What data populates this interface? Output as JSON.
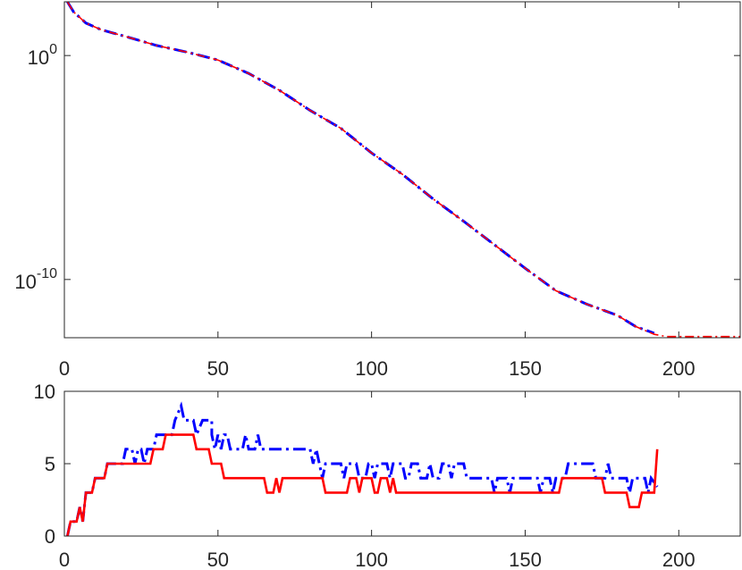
{
  "chart_data": [
    {
      "type": "line",
      "title": "",
      "xlabel": "",
      "ylabel": "",
      "yscale": "log",
      "xlim": [
        0,
        220
      ],
      "ylim_log10": [
        -12.6,
        2.4
      ],
      "xticks": [
        0,
        50,
        100,
        150,
        200
      ],
      "xtick_labels": [
        "0",
        "50",
        "100",
        "150",
        "200"
      ],
      "yticks_log10": [
        0,
        -10
      ],
      "ytick_labels": [
        {
          "base": "10",
          "exp": "0"
        },
        {
          "base": "10",
          "exp": "-10"
        }
      ],
      "grid": false,
      "series": [
        {
          "color": "#0000ff",
          "style": "dash-dot",
          "points_log10": [
            [
              1,
              2.4
            ],
            [
              3,
              1.95
            ],
            [
              7,
              1.45
            ],
            [
              12,
              1.15
            ],
            [
              20,
              0.85
            ],
            [
              30,
              0.45
            ],
            [
              40,
              0.15
            ],
            [
              50,
              -0.2
            ],
            [
              60,
              -0.8
            ],
            [
              70,
              -1.55
            ],
            [
              80,
              -2.45
            ],
            [
              90,
              -3.25
            ],
            [
              100,
              -4.35
            ],
            [
              110,
              -5.3
            ],
            [
              120,
              -6.4
            ],
            [
              130,
              -7.4
            ],
            [
              140,
              -8.45
            ],
            [
              150,
              -9.5
            ],
            [
              160,
              -10.5
            ],
            [
              170,
              -11.1
            ],
            [
              180,
              -11.6
            ],
            [
              186,
              -12.1
            ],
            [
              192,
              -12.4
            ]
          ]
        },
        {
          "color": "#ff0000",
          "style": "solid",
          "points_log10": [
            [
              1,
              2.4
            ],
            [
              3,
              1.95
            ],
            [
              7,
              1.45
            ],
            [
              12,
              1.15
            ],
            [
              20,
              0.85
            ],
            [
              30,
              0.45
            ],
            [
              40,
              0.15
            ],
            [
              50,
              -0.2
            ],
            [
              60,
              -0.8
            ],
            [
              70,
              -1.55
            ],
            [
              80,
              -2.45
            ],
            [
              90,
              -3.25
            ],
            [
              100,
              -4.35
            ],
            [
              110,
              -5.3
            ],
            [
              120,
              -6.4
            ],
            [
              130,
              -7.4
            ],
            [
              140,
              -8.45
            ],
            [
              150,
              -9.5
            ],
            [
              160,
              -10.5
            ],
            [
              170,
              -11.1
            ],
            [
              180,
              -11.6
            ],
            [
              186,
              -12.1
            ],
            [
              192,
              -12.45
            ],
            [
              196,
              -12.55
            ],
            [
              220,
              -12.55
            ]
          ]
        }
      ]
    },
    {
      "type": "line",
      "title": "",
      "xlabel": "",
      "ylabel": "",
      "xlim": [
        0,
        220
      ],
      "ylim": [
        0,
        10
      ],
      "xticks": [
        0,
        50,
        100,
        150,
        200
      ],
      "xtick_labels": [
        "0",
        "50",
        "100",
        "150",
        "200"
      ],
      "yticks": [
        0,
        5,
        10
      ],
      "ytick_labels": [
        "0",
        "5",
        "10"
      ],
      "grid": false,
      "series": [
        {
          "color": "#0000ff",
          "style": "dash-dot",
          "points": [
            [
              1,
              0
            ],
            [
              2,
              1
            ],
            [
              4,
              1
            ],
            [
              5,
              2
            ],
            [
              6,
              1
            ],
            [
              7,
              3
            ],
            [
              9,
              3
            ],
            [
              10,
              4
            ],
            [
              13,
              4
            ],
            [
              14,
              5
            ],
            [
              19,
              5
            ],
            [
              20,
              6
            ],
            [
              22,
              6
            ],
            [
              23,
              5
            ],
            [
              24,
              6
            ],
            [
              25,
              6
            ],
            [
              26,
              5
            ],
            [
              27,
              6
            ],
            [
              29,
              6
            ],
            [
              30,
              7
            ],
            [
              35,
              7
            ],
            [
              36,
              8
            ],
            [
              38,
              9
            ],
            [
              39,
              8
            ],
            [
              42,
              8
            ],
            [
              43,
              7
            ],
            [
              45,
              8
            ],
            [
              48,
              8
            ],
            [
              48,
              7
            ],
            [
              49,
              6
            ],
            [
              50,
              7
            ],
            [
              51,
              6
            ],
            [
              52,
              7
            ],
            [
              53,
              7
            ],
            [
              54,
              6
            ],
            [
              58,
              6
            ],
            [
              59,
              7
            ],
            [
              60,
              6
            ],
            [
              62,
              6
            ],
            [
              63,
              7
            ],
            [
              64,
              6
            ],
            [
              80,
              6
            ],
            [
              81,
              5
            ],
            [
              82,
              6
            ],
            [
              83,
              5
            ],
            [
              84,
              4
            ],
            [
              85,
              5
            ],
            [
              90,
              5
            ],
            [
              91,
              4
            ],
            [
              92,
              5
            ],
            [
              95,
              5
            ],
            [
              96,
              4
            ],
            [
              98,
              4
            ],
            [
              99,
              5
            ],
            [
              100,
              5
            ],
            [
              101,
              4
            ],
            [
              102,
              5
            ],
            [
              105,
              5
            ],
            [
              106,
              4
            ],
            [
              107,
              5
            ],
            [
              110,
              5
            ],
            [
              111,
              4
            ],
            [
              112,
              4
            ],
            [
              113,
              5
            ],
            [
              115,
              5
            ],
            [
              116,
              4
            ],
            [
              118,
              4
            ],
            [
              119,
              5
            ],
            [
              120,
              4
            ],
            [
              122,
              4
            ],
            [
              123,
              5
            ],
            [
              125,
              5
            ],
            [
              126,
              4
            ],
            [
              127,
              5
            ],
            [
              130,
              5
            ],
            [
              131,
              4
            ],
            [
              139,
              4
            ],
            [
              140,
              3
            ],
            [
              141,
              4
            ],
            [
              144,
              4
            ],
            [
              145,
              3
            ],
            [
              146,
              4
            ],
            [
              154,
              4
            ],
            [
              155,
              3
            ],
            [
              156,
              4
            ],
            [
              158,
              4
            ],
            [
              159,
              3
            ],
            [
              160,
              4
            ],
            [
              163,
              4
            ],
            [
              164,
              5
            ],
            [
              172,
              5
            ],
            [
              173,
              4
            ],
            [
              176,
              4
            ],
            [
              177,
              5
            ],
            [
              178,
              4
            ],
            [
              183,
              4
            ],
            [
              184,
              3
            ],
            [
              185,
              4
            ],
            [
              189,
              4
            ],
            [
              190,
              3
            ],
            [
              191,
              4
            ],
            [
              193,
              3.4
            ]
          ]
        },
        {
          "color": "#ff0000",
          "style": "solid",
          "points": [
            [
              1,
              0
            ],
            [
              2,
              1
            ],
            [
              4,
              1
            ],
            [
              5,
              2
            ],
            [
              6,
              1
            ],
            [
              7,
              3
            ],
            [
              9,
              3
            ],
            [
              10,
              4
            ],
            [
              13,
              4
            ],
            [
              14,
              5
            ],
            [
              28,
              5
            ],
            [
              29,
              6
            ],
            [
              32,
              6
            ],
            [
              33,
              7
            ],
            [
              42,
              7
            ],
            [
              43,
              6
            ],
            [
              47,
              6
            ],
            [
              48,
              5
            ],
            [
              51,
              5
            ],
            [
              52,
              4
            ],
            [
              65,
              4
            ],
            [
              66,
              3
            ],
            [
              68,
              3
            ],
            [
              69,
              4
            ],
            [
              70,
              3
            ],
            [
              71,
              4
            ],
            [
              84,
              4
            ],
            [
              85,
              3
            ],
            [
              92,
              3
            ],
            [
              93,
              4
            ],
            [
              95,
              4
            ],
            [
              96,
              3
            ],
            [
              97,
              4
            ],
            [
              100,
              4
            ],
            [
              101,
              3
            ],
            [
              102,
              3
            ],
            [
              103,
              4
            ],
            [
              105,
              4
            ],
            [
              106,
              3
            ],
            [
              107,
              4
            ],
            [
              108,
              3
            ],
            [
              161,
              3
            ],
            [
              162,
              4
            ],
            [
              175,
              4
            ],
            [
              176,
              3
            ],
            [
              183,
              3
            ],
            [
              184,
              2
            ],
            [
              187,
              2
            ],
            [
              188,
              3
            ],
            [
              192,
              3
            ],
            [
              193,
              6
            ]
          ]
        }
      ]
    }
  ]
}
